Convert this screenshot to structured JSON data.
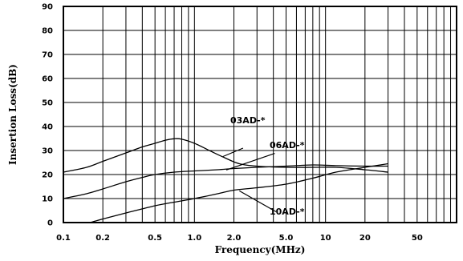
{
  "chart_data": {
    "type": "line",
    "title": "",
    "xlabel": "Frequency(MHz)",
    "ylabel": "Insertion Loss(dB)",
    "x_scale": "log",
    "xlim": [
      0.1,
      100
    ],
    "ylim": [
      0,
      90
    ],
    "grid": true,
    "legend": "none",
    "x_ticks": [
      {
        "value": 0.1,
        "label": "0.1"
      },
      {
        "value": 0.2,
        "label": "0.2"
      },
      {
        "value": 0.5,
        "label": "0.5"
      },
      {
        "value": 1,
        "label": "1.0"
      },
      {
        "value": 2,
        "label": "2.0"
      },
      {
        "value": 5,
        "label": "5.0"
      },
      {
        "value": 10,
        "label": "10"
      },
      {
        "value": 20,
        "label": "20"
      },
      {
        "value": 50,
        "label": "50"
      }
    ],
    "y_ticks": [
      {
        "value": 0,
        "label": "0"
      },
      {
        "value": 10,
        "label": "10"
      },
      {
        "value": 20,
        "label": "20"
      },
      {
        "value": 30,
        "label": "30"
      },
      {
        "value": 40,
        "label": "40"
      },
      {
        "value": 50,
        "label": "50"
      },
      {
        "value": 60,
        "label": "60"
      },
      {
        "value": 70,
        "label": "70"
      },
      {
        "value": 80,
        "label": "80"
      },
      {
        "value": 90,
        "label": "90"
      }
    ],
    "series": [
      {
        "name": "03AD-*",
        "x": [
          0.1,
          0.15,
          0.2,
          0.3,
          0.4,
          0.5,
          0.6,
          0.7,
          0.8,
          1.0,
          1.3,
          1.7,
          2.2,
          3,
          5,
          8,
          12,
          20,
          30
        ],
        "y": [
          21,
          23,
          25.5,
          29,
          31.5,
          33,
          34.3,
          34.9,
          34.7,
          33,
          30,
          27,
          24.5,
          23.5,
          23,
          23,
          23,
          22,
          21
        ]
      },
      {
        "name": "06AD-*",
        "x": [
          0.1,
          0.15,
          0.2,
          0.3,
          0.4,
          0.5,
          0.7,
          1.0,
          1.5,
          2,
          3,
          5,
          8,
          12,
          20,
          30
        ],
        "y": [
          10,
          12,
          14,
          17,
          18.8,
          20,
          21,
          21.5,
          22,
          22.5,
          23,
          23.5,
          24,
          23.7,
          23.5,
          23.5
        ]
      },
      {
        "name": "10AD-*",
        "x": [
          0.16,
          0.2,
          0.3,
          0.5,
          0.7,
          1.0,
          1.5,
          2,
          3,
          5,
          8,
          12,
          20,
          30
        ],
        "y": [
          0,
          1.5,
          4,
          7,
          8.5,
          10,
          12,
          13.5,
          14.5,
          16,
          18.5,
          21,
          23,
          24.5
        ]
      }
    ],
    "annotations": [
      {
        "text": "03AD-*",
        "series": "03AD-*"
      },
      {
        "text": "06AD-*",
        "series": "06AD-*"
      },
      {
        "text": "10AD-*",
        "series": "10AD-*"
      }
    ]
  }
}
